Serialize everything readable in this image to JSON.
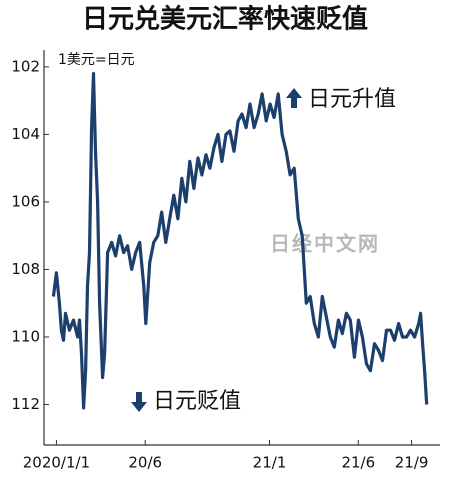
{
  "chart_data": {
    "type": "line",
    "title": "日元兑美元汇率快速贬值",
    "unit_note": "1美元=日元",
    "annotations": [
      "日元升值",
      "日元贬值"
    ],
    "watermark": "日经中文网",
    "x": [
      -0.17,
      0,
      0.17,
      0.28,
      0.4,
      0.51,
      0.73,
      0.96,
      1.19,
      1.3,
      1.41,
      1.53,
      1.64,
      1.75,
      1.86,
      1.98,
      2.09,
      2.2,
      2.32,
      2.43,
      2.6,
      2.71,
      2.88,
      3.11,
      3.33,
      3.56,
      3.79,
      4.01,
      4.24,
      4.46,
      4.69,
      4.92,
      5.03,
      5.25,
      5.48,
      5.71,
      5.93,
      6.16,
      6.38,
      6.61,
      6.84,
      7.06,
      7.29,
      7.51,
      7.74,
      7.97,
      8.19,
      8.42,
      8.64,
      8.87,
      9.1,
      9.32,
      9.55,
      9.77,
      10,
      10.23,
      10.45,
      10.68,
      10.9,
      11.13,
      11.36,
      11.58,
      11.81,
      12.03,
      12.26,
      12.49,
      12.71,
      12.94,
      13.16,
      13.39,
      13.62,
      13.84,
      14.07,
      14.29,
      14.52,
      14.75,
      14.97,
      15.2,
      15.42,
      15.65,
      15.88,
      16.1,
      16.33,
      16.55,
      16.78,
      17.01,
      17.23,
      17.46,
      17.68,
      17.91,
      18.14,
      18.36,
      18.59,
      18.81,
      19.04,
      19.27,
      19.49,
      19.72,
      19.94,
      20.17,
      20.4,
      20.51,
      20.62,
      20.73,
      20.85
    ],
    "series": [
      {
        "name": "1美元=日元",
        "color": "#1c3f6e",
        "values": [
          108.8,
          108.1,
          109.0,
          109.8,
          110.1,
          109.3,
          109.8,
          109.5,
          110.0,
          109.5,
          110.5,
          112.1,
          111.0,
          108.5,
          107.5,
          103.8,
          102.2,
          104.5,
          106.0,
          109.0,
          111.2,
          110.5,
          107.5,
          107.2,
          107.6,
          107.0,
          107.5,
          107.3,
          108.0,
          107.5,
          107.2,
          108.5,
          109.6,
          107.8,
          107.2,
          107.0,
          106.3,
          107.2,
          106.5,
          105.8,
          106.5,
          105.3,
          106.0,
          104.8,
          105.6,
          104.7,
          105.2,
          104.6,
          105.0,
          104.4,
          104.0,
          104.8,
          104.0,
          103.9,
          104.5,
          103.6,
          103.4,
          103.8,
          103.1,
          103.8,
          103.4,
          102.8,
          103.6,
          103.1,
          103.5,
          102.8,
          104.0,
          104.5,
          105.2,
          105.0,
          106.5,
          107.0,
          109.0,
          108.8,
          109.6,
          110.0,
          108.8,
          109.4,
          110.0,
          110.3,
          109.5,
          109.9,
          109.3,
          109.5,
          110.6,
          109.5,
          110.0,
          110.8,
          111.0,
          110.2,
          110.4,
          110.7,
          109.8,
          109.8,
          110.1,
          109.6,
          110.0,
          110.0,
          109.8,
          110.0,
          109.6,
          109.3,
          110.2,
          111.0,
          112.0
        ]
      }
    ],
    "xlim": [
      -0.7,
      21.6
    ],
    "xticks": [
      {
        "value": 0,
        "label": "2020/1/1"
      },
      {
        "value": 5,
        "label": "20/6"
      },
      {
        "value": 12,
        "label": "21/1"
      },
      {
        "value": 17,
        "label": "21/6"
      },
      {
        "value": 20,
        "label": "21/9"
      }
    ],
    "ylim": [
      101.5,
      113.2
    ],
    "yticks": [
      102,
      104,
      106,
      108,
      110,
      112
    ],
    "y_inverted": true,
    "grid": false
  }
}
